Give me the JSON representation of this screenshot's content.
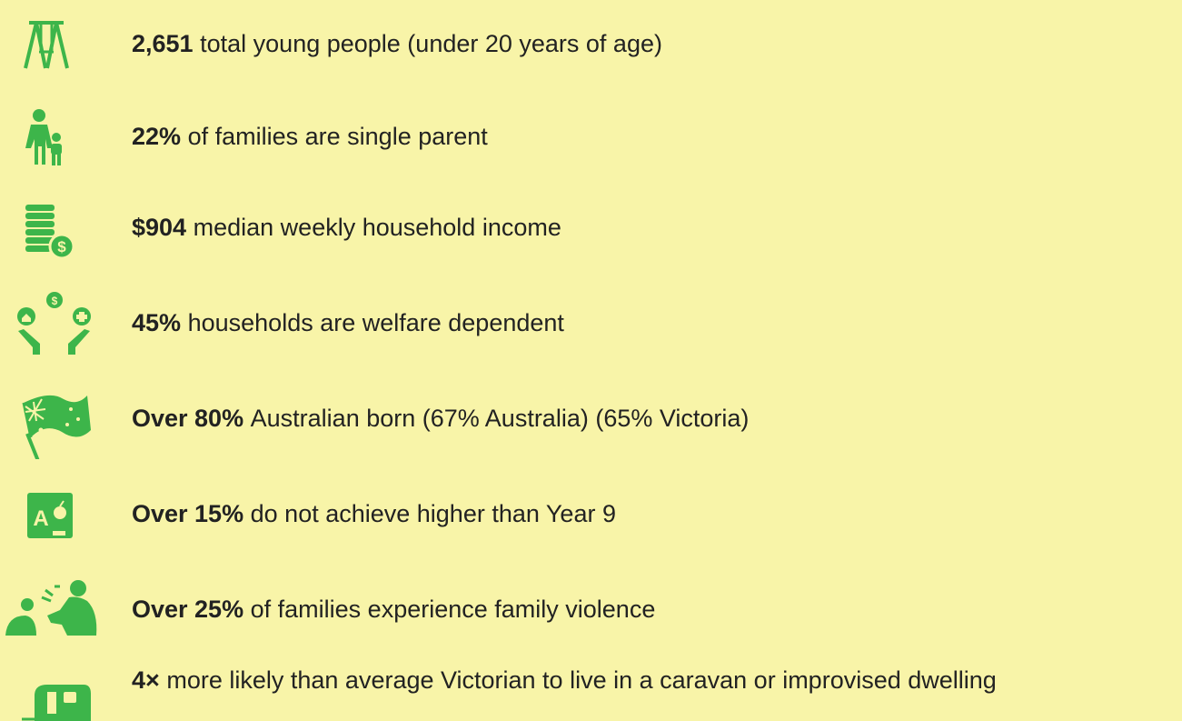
{
  "items": [
    {
      "bold": "2,651",
      "text": "total young people (under 20 years of age)"
    },
    {
      "bold": "22%",
      "text": "of families are single parent"
    },
    {
      "bold": "$904",
      "text": "median weekly household income"
    },
    {
      "bold": "45%",
      "text": "households are welfare dependent"
    },
    {
      "bold": "Over 80%",
      "text": "Australian born (67% Australia) (65% Victoria)"
    },
    {
      "bold": "Over 15%",
      "text": "do not achieve higher than Year 9"
    },
    {
      "bold": "Over 25%",
      "text": "of families experience family violence"
    },
    {
      "bold": "4×",
      "text": "more likely than average Victorian to live in a caravan or improvised dwelling"
    }
  ]
}
